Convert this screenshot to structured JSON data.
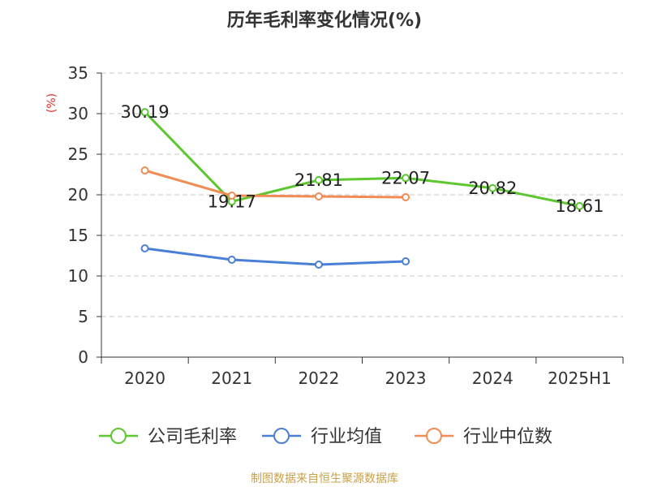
{
  "chart_data": {
    "type": "line",
    "title": "历年毛利率变化情况(%)",
    "ylabel": "(%)",
    "xlabel": "",
    "categories": [
      "2020",
      "2021",
      "2022",
      "2023",
      "2024",
      "2025H1"
    ],
    "ylim": [
      0,
      35
    ],
    "yticks": [
      0,
      5,
      10,
      15,
      20,
      25,
      30,
      35
    ],
    "grid": true,
    "legend_position": "bottom",
    "series": [
      {
        "name": "公司毛利率",
        "color": "#5cc72f",
        "values": [
          30.19,
          19.17,
          21.81,
          22.07,
          20.82,
          18.61
        ],
        "show_labels": true
      },
      {
        "name": "行业均值",
        "color": "#4a7fd8",
        "values": [
          13.4,
          12.0,
          11.4,
          11.8,
          null,
          null
        ],
        "show_labels": false
      },
      {
        "name": "行业中位数",
        "color": "#f28c55",
        "values": [
          23.0,
          19.9,
          19.8,
          19.7,
          null,
          null
        ],
        "show_labels": false
      }
    ]
  },
  "source": "制图数据来自恒生聚源数据库",
  "colors": {
    "axis": "#333333",
    "grid": "#c8c8c8",
    "ylabel": "#e03030",
    "source": "#c9a14a"
  }
}
